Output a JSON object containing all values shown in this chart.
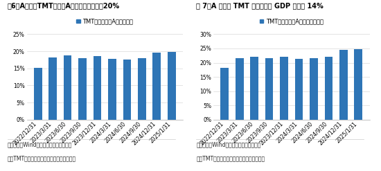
{
  "chart1": {
    "title": "图6：A股整个TMT板块占A股总市值的比重约20%",
    "legend_label": "TMT总市值占全A总市值比重",
    "categories": [
      "2022/12/31",
      "2023/3/31",
      "2023/6/30",
      "2023/9/30",
      "2023/12/31",
      "2024/3/31",
      "2024/6/30",
      "2024/9/30",
      "2024/12/31",
      "2025/1/31"
    ],
    "values": [
      0.151,
      0.182,
      0.188,
      0.179,
      0.186,
      0.177,
      0.175,
      0.179,
      0.197,
      0.199
    ],
    "ylim": [
      0,
      0.25
    ],
    "yticks": [
      0,
      0.05,
      0.1,
      0.15,
      0.2,
      0.25
    ],
    "source": "数据来源：Wind、广发证券发展研究中心",
    "note": "注：TMT板块指电子计算机传媒通信四个行业"
  },
  "chart2": {
    "title": "图 7：A 股整个 TMT 板块占中国 GDP 比重仅 14%",
    "legend_label": "TMT总市值占全A非金融市值比重",
    "categories": [
      "2022/12/31",
      "2023/3/31",
      "2023/6/30",
      "2023/9/30",
      "2023/12/31",
      "2024/3/31",
      "2024/6/30",
      "2024/9/30",
      "2024/12/31",
      "2025/1/31"
    ],
    "values": [
      0.183,
      0.215,
      0.222,
      0.215,
      0.222,
      0.214,
      0.216,
      0.221,
      0.245,
      0.248
    ],
    "ylim": [
      0,
      0.3
    ],
    "yticks": [
      0,
      0.05,
      0.1,
      0.15,
      0.2,
      0.25,
      0.3
    ],
    "source": "数据来源：Wind、广发证券发展研究中心",
    "note": "注：TMT板块指电子计算机传媒通信四个行业"
  },
  "bar_color": "#2E75B6",
  "bg_color": "#FFFFFF",
  "title_fontsize": 7.0,
  "axis_fontsize": 5.5,
  "legend_fontsize": 6.0,
  "note_fontsize": 5.5,
  "bar_width": 0.55
}
